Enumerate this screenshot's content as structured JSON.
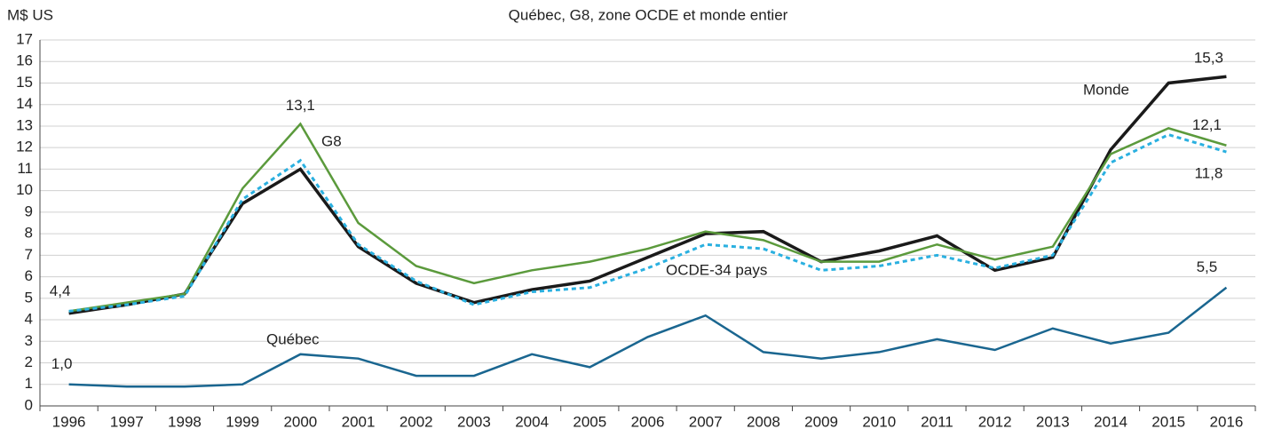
{
  "chart_data": {
    "type": "line",
    "title": "Québec, G8, zone OCDE et monde entier",
    "y_label": "M$ US",
    "categories": [
      "1996",
      "1997",
      "1998",
      "1999",
      "2000",
      "2001",
      "2002",
      "2003",
      "2004",
      "2005",
      "2006",
      "2007",
      "2008",
      "2009",
      "2010",
      "2011",
      "2012",
      "2013",
      "2014",
      "2015",
      "2016"
    ],
    "ylim": [
      0,
      17
    ],
    "yticks": [
      0,
      1,
      2,
      3,
      4,
      5,
      6,
      7,
      8,
      9,
      10,
      11,
      12,
      13,
      14,
      15,
      16,
      17
    ],
    "grid": true,
    "series": [
      {
        "name": "Monde",
        "color": "#1a1a1a",
        "dashed": false,
        "values": [
          4.3,
          4.7,
          5.2,
          9.4,
          11.0,
          7.4,
          5.7,
          4.8,
          5.4,
          5.8,
          6.9,
          8.0,
          8.1,
          6.7,
          7.2,
          7.9,
          6.3,
          6.9,
          11.9,
          15.0,
          15.3
        ],
        "value_labels": [
          null,
          null,
          null,
          null,
          null,
          null,
          null,
          null,
          null,
          null,
          null,
          null,
          null,
          null,
          null,
          null,
          null,
          null,
          null,
          null,
          "15,3"
        ]
      },
      {
        "name": "G8",
        "color": "#5b9a3c",
        "dashed": false,
        "values": [
          4.4,
          4.8,
          5.2,
          10.1,
          13.1,
          8.5,
          6.5,
          5.7,
          6.3,
          6.7,
          7.3,
          8.1,
          7.7,
          6.7,
          6.7,
          7.5,
          6.8,
          7.4,
          11.7,
          12.9,
          12.1
        ],
        "value_labels": [
          "4,4",
          null,
          null,
          null,
          "13,1",
          null,
          null,
          null,
          null,
          null,
          null,
          null,
          null,
          null,
          null,
          null,
          null,
          null,
          null,
          null,
          "12,1"
        ]
      },
      {
        "name": "OCDE-34 pays",
        "color": "#2ab0e0",
        "dashed": true,
        "values": [
          4.4,
          4.7,
          5.1,
          9.6,
          11.4,
          7.5,
          5.8,
          4.7,
          5.3,
          5.5,
          6.4,
          7.5,
          7.3,
          6.3,
          6.5,
          7.0,
          6.4,
          7.0,
          11.3,
          12.6,
          11.8
        ],
        "value_labels": [
          null,
          null,
          null,
          null,
          null,
          null,
          null,
          null,
          null,
          null,
          null,
          null,
          null,
          null,
          null,
          null,
          null,
          null,
          null,
          null,
          "11,8"
        ]
      },
      {
        "name": "Québec",
        "color": "#1a6690",
        "dashed": false,
        "values": [
          1.0,
          0.9,
          0.9,
          1.0,
          2.4,
          2.2,
          1.4,
          1.4,
          2.4,
          1.8,
          3.2,
          4.2,
          2.5,
          2.2,
          2.5,
          3.1,
          2.6,
          3.6,
          2.9,
          3.4,
          5.5
        ],
        "value_labels": [
          "1,0",
          null,
          null,
          null,
          null,
          null,
          null,
          null,
          null,
          null,
          null,
          null,
          null,
          null,
          null,
          null,
          null,
          null,
          null,
          null,
          "5,5"
        ]
      }
    ]
  }
}
